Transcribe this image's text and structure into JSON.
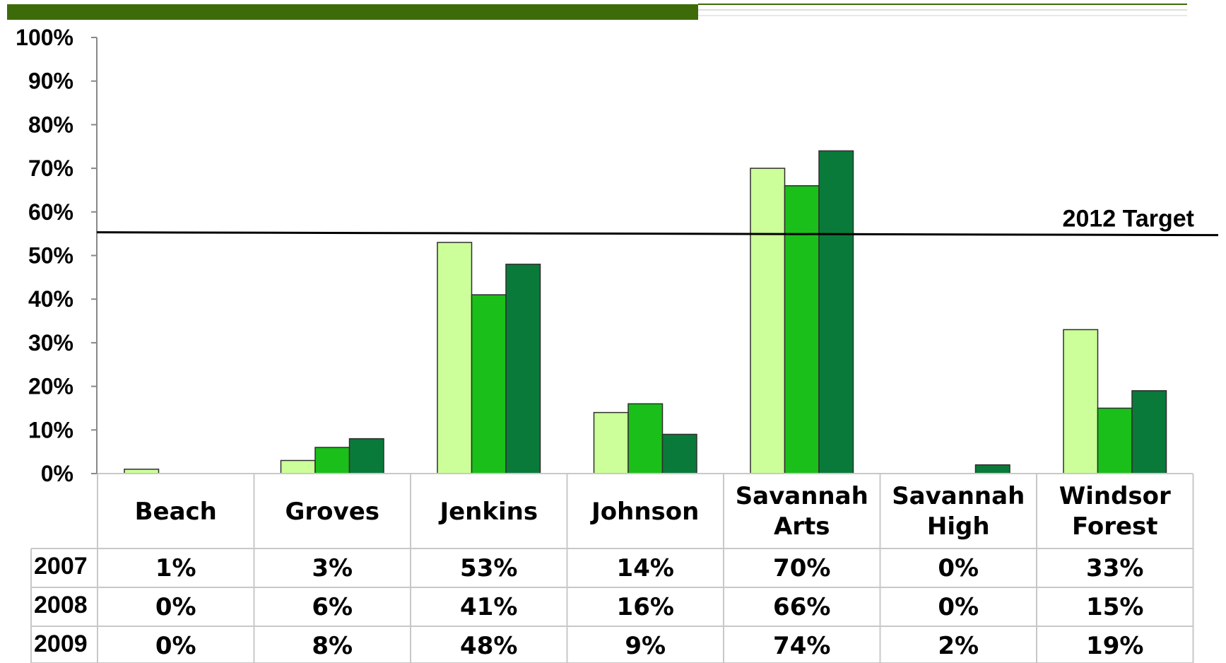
{
  "chart_data": {
    "type": "bar",
    "title": "",
    "xlabel": "",
    "ylabel": "",
    "ylim": [
      0,
      100
    ],
    "yticks": [
      "0%",
      "10%",
      "20%",
      "30%",
      "40%",
      "50%",
      "60%",
      "70%",
      "80%",
      "90%",
      "100%"
    ],
    "grid": false,
    "legend": "table-below",
    "categories": [
      [
        "Beach"
      ],
      [
        "Groves"
      ],
      [
        "Jenkins"
      ],
      [
        "Johnson"
      ],
      [
        "Savannah",
        "Arts"
      ],
      [
        "Savannah",
        "High"
      ],
      [
        "Windsor",
        "Forest"
      ]
    ],
    "series": [
      {
        "name": "2007",
        "color": "#ccff99",
        "values": [
          1,
          3,
          53,
          14,
          70,
          0,
          33
        ]
      },
      {
        "name": "2008",
        "color": "#1abf1a",
        "values": [
          0,
          6,
          41,
          16,
          66,
          0,
          15
        ]
      },
      {
        "name": "2009",
        "color": "#0a7a3a",
        "values": [
          0,
          8,
          48,
          9,
          74,
          2,
          19
        ]
      }
    ],
    "table_values": [
      [
        "1%",
        "3%",
        "53%",
        "14%",
        "70%",
        "0%",
        "33%"
      ],
      [
        "0%",
        "6%",
        "41%",
        "16%",
        "66%",
        "0%",
        "15%"
      ],
      [
        "0%",
        "8%",
        "48%",
        "9%",
        "74%",
        "2%",
        "19%"
      ]
    ],
    "reference_line": {
      "label": "2012 Target",
      "value": 55
    }
  },
  "header_bar_color": "#3d6b0a"
}
